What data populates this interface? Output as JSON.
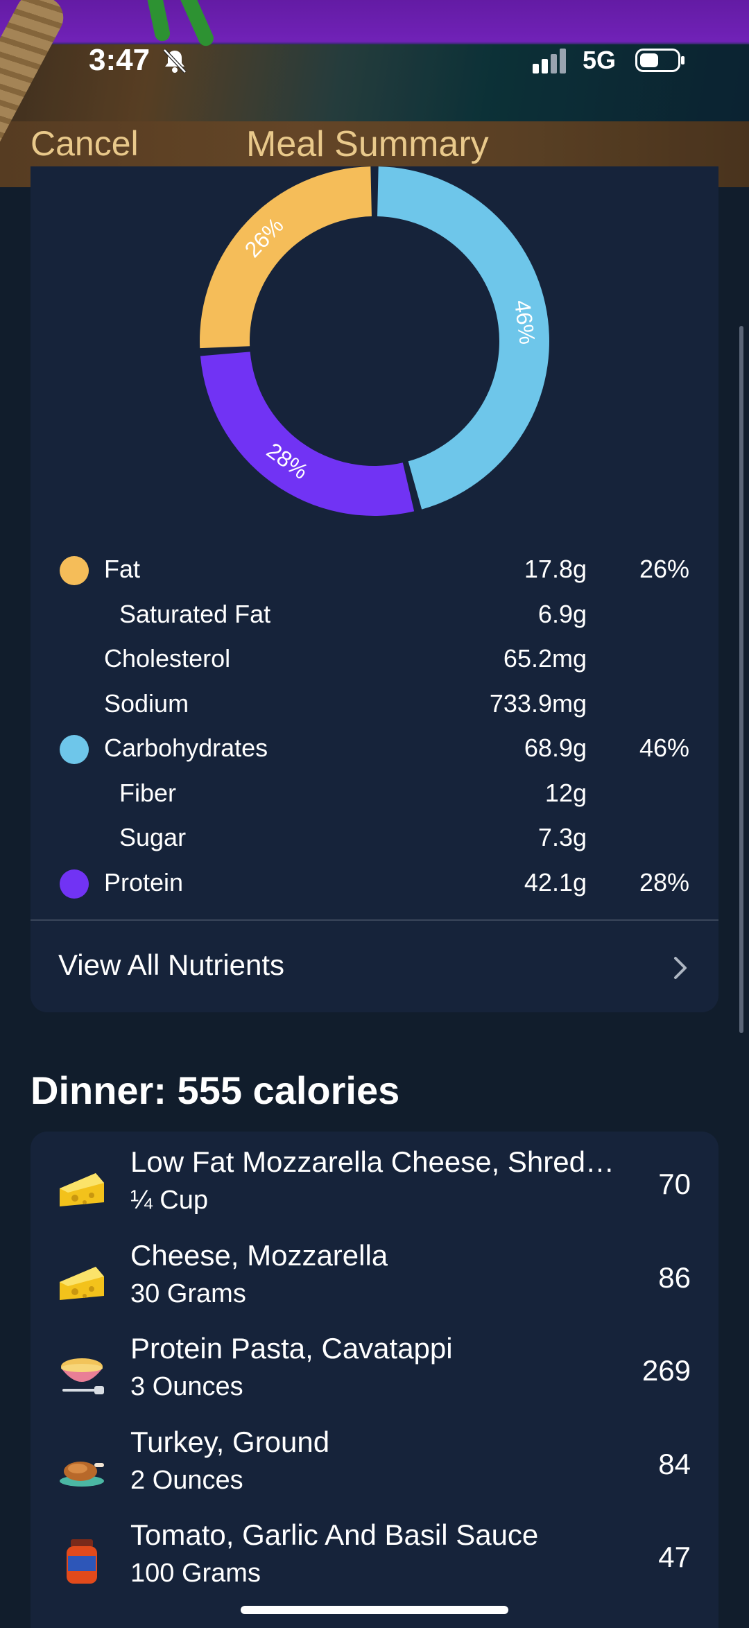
{
  "status_bar": {
    "time": "3:47",
    "network": "5G"
  },
  "header": {
    "cancel_label": "Cancel",
    "title": "Meal Summary"
  },
  "colors": {
    "fat": "#f5bd59",
    "carbs": "#6ec6ea",
    "protein": "#7133f4",
    "card": "#16233a",
    "accent": "#e9c98b"
  },
  "chart_data": {
    "type": "pie",
    "categories": [
      "Fat",
      "Carbohydrates",
      "Protein"
    ],
    "values": [
      26,
      46,
      28
    ],
    "labels": [
      "26%",
      "46%",
      "28%"
    ]
  },
  "nutrients": [
    {
      "name": "Fat",
      "amount": "17.8g",
      "pct": "26%",
      "dot": "fat",
      "indent": false
    },
    {
      "name": "Saturated Fat",
      "amount": "6.9g",
      "pct": "",
      "dot": "",
      "indent": true
    },
    {
      "name": "Cholesterol",
      "amount": "65.2mg",
      "pct": "",
      "dot": "",
      "indent": false
    },
    {
      "name": "Sodium",
      "amount": "733.9mg",
      "pct": "",
      "dot": "",
      "indent": false
    },
    {
      "name": "Carbohydrates",
      "amount": "68.9g",
      "pct": "46%",
      "dot": "carbs",
      "indent": false
    },
    {
      "name": "Fiber",
      "amount": "12g",
      "pct": "",
      "dot": "",
      "indent": true
    },
    {
      "name": "Sugar",
      "amount": "7.3g",
      "pct": "",
      "dot": "",
      "indent": true
    },
    {
      "name": "Protein",
      "amount": "42.1g",
      "pct": "28%",
      "dot": "protein",
      "indent": false
    }
  ],
  "view_all_label": "View All Nutrients",
  "dinner": {
    "title": "Dinner: 555 calories",
    "items": [
      {
        "name": "Low Fat Mozzarella Cheese, Shred…",
        "qty": "¼ Cup",
        "calories": "70",
        "icon": "cheese-icon"
      },
      {
        "name": "Cheese, Mozzarella",
        "qty": "30 Grams",
        "calories": "86",
        "icon": "cheese-icon"
      },
      {
        "name": "Protein Pasta, Cavatappi",
        "qty": "3 Ounces",
        "calories": "269",
        "icon": "pasta-bowl-icon"
      },
      {
        "name": "Turkey, Ground",
        "qty": "2 Ounces",
        "calories": "84",
        "icon": "roast-turkey-icon"
      },
      {
        "name": "Tomato, Garlic And Basil Sauce",
        "qty": "100 Grams",
        "calories": "47",
        "icon": "sauce-jar-icon"
      }
    ]
  }
}
